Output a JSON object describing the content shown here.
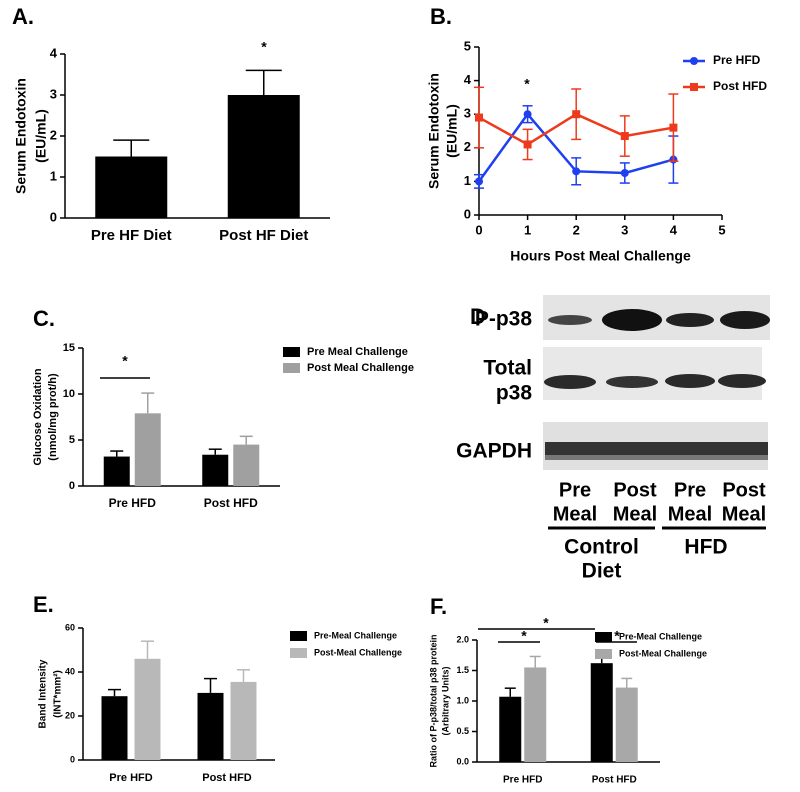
{
  "chart_data": [
    {
      "type": "bar",
      "panel": "A.",
      "ylabel": [
        "Serum Endotoxin",
        "(EU/mL)"
      ],
      "categories": [
        "Pre HF Diet",
        "Post HF Diet"
      ],
      "values": [
        1.5,
        3.0
      ],
      "errors": [
        0.4,
        0.6
      ],
      "color": "#000000",
      "ylim": [
        0,
        4
      ],
      "yticks": [
        0,
        1,
        2,
        3,
        4
      ],
      "annotations": [
        "*"
      ]
    },
    {
      "type": "line",
      "panel": "B.",
      "ylabel": [
        "Serum Endotoxin",
        "(EU/mL)"
      ],
      "xlabel": "Hours Post Meal Challenge",
      "x": [
        0,
        1,
        2,
        3,
        4
      ],
      "series": [
        {
          "name": "Pre HFD",
          "color": "#1f3ff0",
          "marker": "circle",
          "values": [
            1.0,
            3.0,
            1.3,
            1.25,
            1.65
          ],
          "errors": [
            0.2,
            0.25,
            0.4,
            0.3,
            0.7
          ]
        },
        {
          "name": "Post HFD",
          "color": "#ee3a1c",
          "marker": "square",
          "values": [
            2.9,
            2.1,
            3.0,
            2.35,
            2.6
          ],
          "errors": [
            0.9,
            0.45,
            0.75,
            0.6,
            1.0
          ]
        }
      ],
      "xlim": [
        0,
        5
      ],
      "xticks": [
        0,
        1,
        2,
        3,
        4,
        5
      ],
      "ylim": [
        0,
        5
      ],
      "yticks": [
        0,
        1,
        2,
        3,
        4,
        5
      ],
      "annotations": [
        "*"
      ]
    },
    {
      "type": "bar",
      "panel": "C.",
      "ylabel": [
        "Glucose Oxidation",
        "(nmol/mg prot/h)"
      ],
      "categories": [
        "Pre HFD",
        "Post HFD"
      ],
      "series": [
        {
          "name": "Pre Meal Challenge",
          "color": "#000000",
          "values": [
            3.2,
            3.4
          ],
          "errors": [
            0.6,
            0.6
          ]
        },
        {
          "name": "Post Meal Challenge",
          "color": "#a0a0a0",
          "values": [
            7.9,
            4.5
          ],
          "errors": [
            2.2,
            0.9
          ]
        }
      ],
      "ylim": [
        0,
        15
      ],
      "yticks": [
        0,
        5,
        10,
        15
      ],
      "annotations": [
        "*"
      ]
    },
    {
      "type": "bar",
      "panel": "E.",
      "ylabel": [
        "Band Intensity",
        "(INT*mm²)"
      ],
      "categories": [
        "Pre HFD",
        "Post HFD"
      ],
      "series": [
        {
          "name": "Pre-Meal Challenge",
          "color": "#000000",
          "values": [
            29,
            30.5
          ],
          "errors": [
            3,
            6.5
          ]
        },
        {
          "name": "Post-Meal Challenge",
          "color": "#b8b8b8",
          "values": [
            46,
            35.5
          ],
          "errors": [
            8,
            5.5
          ]
        }
      ],
      "ylim": [
        0,
        60
      ],
      "yticks": [
        0,
        20,
        40,
        60
      ]
    },
    {
      "type": "bar",
      "panel": "F.",
      "ylabel": [
        "Ratio of P-p38/total p38 protein",
        "(Arbitrary Units)"
      ],
      "categories": [
        "Pre HFD",
        "Post HFD"
      ],
      "series": [
        {
          "name": "Pre-Meal Challenge",
          "color": "#000000",
          "values": [
            1.07,
            1.62
          ],
          "errors": [
            0.14,
            0.18
          ]
        },
        {
          "name": "Post-Meal Challenge",
          "color": "#a8a8a8",
          "values": [
            1.55,
            1.22
          ],
          "errors": [
            0.18,
            0.15
          ]
        }
      ],
      "ylim": [
        0,
        2.0
      ],
      "yticks": [
        {
          "value": 0,
          "label": "0.0"
        },
        0.5,
        {
          "value": 1,
          "label": "1.0"
        },
        1.5,
        {
          "value": 2,
          "label": "2.0"
        }
      ],
      "annotations": [
        "*",
        "*",
        "*"
      ]
    }
  ],
  "blot": {
    "panel": "D",
    "rows": [
      [
        "P-p38"
      ],
      [
        "Total",
        "p38"
      ],
      [
        "GAPDH"
      ]
    ],
    "lanes": [
      [
        "Pre",
        "Meal"
      ],
      [
        "Post",
        "Meal"
      ],
      [
        "Pre",
        "Meal"
      ],
      [
        "Post",
        "Meal"
      ]
    ],
    "groups": [
      [
        "Control",
        "Diet"
      ],
      [
        "HFD"
      ]
    ]
  }
}
